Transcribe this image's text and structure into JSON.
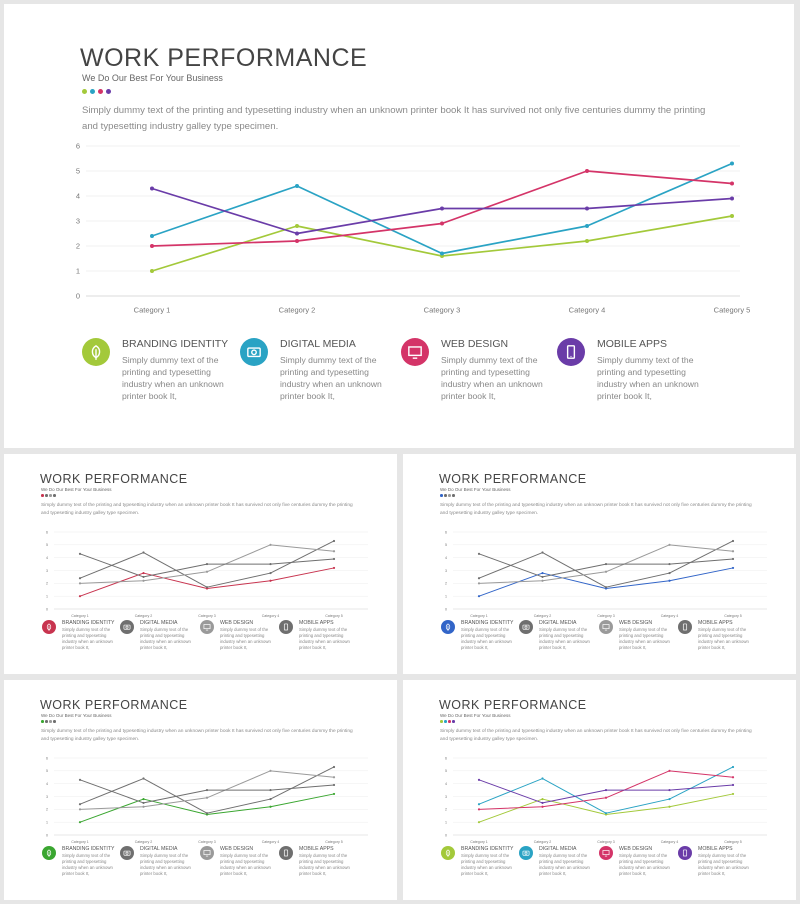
{
  "slide": {
    "title": "WORK PERFORMANCE",
    "subtitle": "We Do Our Best For Your Business",
    "paragraph": "Simply dummy text of the printing  and typesetting industry  when  an unknown printer  book It  has survived not only five centuries  dummy   the printing  and typesetting industry galley type specimen."
  },
  "features": [
    {
      "title": "BRANDING  IDENTITY",
      "text": "Simply dummy text of the printing and typesetting industry when an unknown printer book It,",
      "icon": "leaf-icon"
    },
    {
      "title": "DIGITAL  MEDIA",
      "text": "Simply dummy text of the printing and typesetting industry when an unknown printer book It,",
      "icon": "camera-icon"
    },
    {
      "title": "WEB DESIGN",
      "text": "Simply dummy text of the printing and typesetting industry when an unknown printer book It,",
      "icon": "monitor-icon"
    },
    {
      "title": "MOBILE APPS",
      "text": "Simply dummy text of the printing and typesetting industry when an unknown printer book It,",
      "icon": "phone-icon"
    }
  ],
  "chart_data": {
    "type": "line",
    "categories": [
      "Category 1",
      "Category 2",
      "Category 3",
      "Category 4",
      "Category 5"
    ],
    "yticks": [
      "0",
      "1",
      "2",
      "3",
      "4",
      "5",
      "6"
    ],
    "ylim": [
      0,
      6
    ],
    "grid": true,
    "series": [
      {
        "values": [
          1.0,
          2.8,
          1.6,
          2.2,
          3.2
        ]
      },
      {
        "values": [
          2.4,
          4.4,
          1.7,
          2.8,
          5.3
        ]
      },
      {
        "values": [
          2.0,
          2.2,
          2.9,
          5.0,
          4.5
        ]
      },
      {
        "values": [
          4.3,
          2.5,
          3.5,
          3.5,
          3.9
        ]
      }
    ]
  },
  "colors": {
    "green": "#a3c93a",
    "teal": "#2aa3c4",
    "pink": "#d43468",
    "purple": "#6a3ca8",
    "thumb_red": "#c8344f",
    "thumb_blue": "#3265c8",
    "thumb_green": "#3aa630",
    "gray_dark": "#6f6f6f",
    "gray_mid": "#9a9a9a",
    "gray_light": "#c6c6c6"
  },
  "variants": [
    {
      "palette": [
        "gray_light",
        "gray_dark",
        "gray_mid",
        "gray_dark"
      ],
      "highlight": "thumb_red",
      "highlight_series": 0
    },
    {
      "palette": [
        "gray_light",
        "gray_dark",
        "gray_mid",
        "gray_dark"
      ],
      "highlight": "thumb_blue",
      "highlight_series": 0
    },
    {
      "palette": [
        "gray_light",
        "gray_dark",
        "gray_mid",
        "gray_dark"
      ],
      "highlight": "thumb_green",
      "highlight_series": 0
    },
    {
      "palette": [
        "green",
        "teal",
        "pink",
        "purple"
      ],
      "highlight": null,
      "highlight_series": null
    }
  ]
}
